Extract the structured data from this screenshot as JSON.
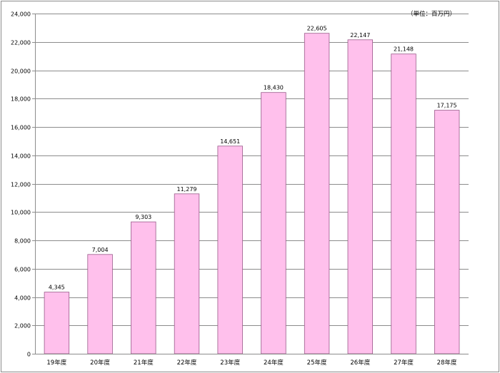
{
  "chart_data": {
    "type": "bar",
    "unit_label": "（単位：百万円）",
    "categories": [
      "19年度",
      "20年度",
      "21年度",
      "22年度",
      "23年度",
      "24年度",
      "25年度",
      "26年度",
      "27年度",
      "28年度"
    ],
    "values": [
      4345,
      7004,
      9303,
      11279,
      14651,
      18430,
      22605,
      22147,
      21148,
      17175
    ],
    "value_labels": [
      "4,345",
      "7,004",
      "9,303",
      "11,279",
      "14,651",
      "18,430",
      "22,605",
      "22,147",
      "21,148",
      "17,175"
    ],
    "ylim": [
      0,
      24000
    ],
    "y_ticks": [
      0,
      2000,
      4000,
      6000,
      8000,
      10000,
      12000,
      14000,
      16000,
      18000,
      20000,
      22000,
      24000
    ],
    "y_tick_labels": [
      "0",
      "2,000",
      "4,000",
      "6,000",
      "8,000",
      "10,000",
      "12,000",
      "14,000",
      "16,000",
      "18,000",
      "20,000",
      "22,000",
      "24,000"
    ],
    "grid": true,
    "bar_color": "#ffc0ec",
    "bar_edge_color": "#9a5a8a",
    "grid_color": "#8c8c8c"
  }
}
